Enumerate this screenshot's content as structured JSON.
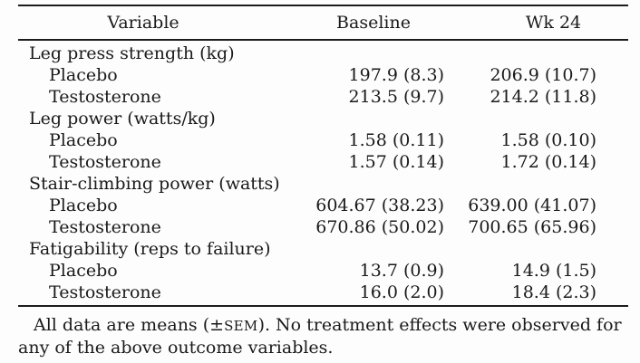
{
  "table": {
    "columns": [
      "Variable",
      "Baseline",
      "Wk 24"
    ],
    "sections": [
      {
        "label": "Leg press strength (kg)",
        "rows": [
          {
            "label": "Placebo",
            "baseline": "197.9 (8.3)",
            "wk24": "206.9 (10.7)"
          },
          {
            "label": "Testosterone",
            "baseline": "213.5 (9.7)",
            "wk24": "214.2 (11.8)"
          }
        ]
      },
      {
        "label": "Leg power (watts/kg)",
        "rows": [
          {
            "label": "Placebo",
            "baseline": "1.58 (0.11)",
            "wk24": "1.58 (0.10)"
          },
          {
            "label": "Testosterone",
            "baseline": "1.57 (0.14)",
            "wk24": "1.72 (0.14)"
          }
        ]
      },
      {
        "label": "Stair-climbing power (watts)",
        "rows": [
          {
            "label": "Placebo",
            "baseline": "604.67 (38.23)",
            "wk24": "639.00 (41.07)"
          },
          {
            "label": "Testosterone",
            "baseline": "670.86 (50.02)",
            "wk24": "700.65 (65.96)"
          }
        ]
      },
      {
        "label": "Fatigability (reps to failure)",
        "rows": [
          {
            "label": "Placebo",
            "baseline": "13.7 (0.9)",
            "wk24": "14.9 (1.5)"
          },
          {
            "label": "Testosterone",
            "baseline": "16.0 (2.0)",
            "wk24": "18.4 (2.3)"
          }
        ]
      }
    ]
  },
  "footnote": {
    "line1_pre": "All data are means (±",
    "line1_smallcaps": "SEM",
    "line1_post": "). No treatment effects were observed for",
    "line2": "any of the above outcome variables."
  },
  "colors": {
    "text": "#1a1a1a",
    "rule": "#1c1c1c",
    "background": "#fdfdfd"
  }
}
